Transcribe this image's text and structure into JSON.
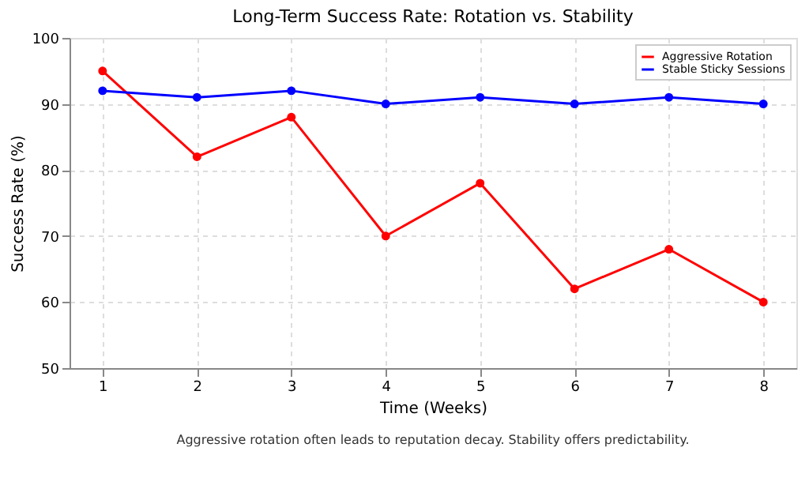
{
  "chart_data": {
    "type": "line",
    "title": "Long-Term Success Rate: Rotation vs. Stability",
    "xlabel": "Time (Weeks)",
    "ylabel": "Success Rate (%)",
    "x": [
      1,
      2,
      3,
      4,
      5,
      6,
      7,
      8
    ],
    "xlim": [
      0.65,
      8.35
    ],
    "xticks": [
      1,
      2,
      3,
      4,
      5,
      6,
      7,
      8
    ],
    "ylim": [
      50,
      100
    ],
    "yticks": [
      50,
      60,
      70,
      80,
      90,
      100
    ],
    "grid": true,
    "legend": "top right",
    "marker": "circle",
    "line_style": "solid",
    "annotations": [
      "Aggressive rotation often leads to reputation decay. Stability offers predictability."
    ],
    "series": [
      {
        "name": "Aggressive Rotation",
        "color": "#ff0000",
        "values": [
          95,
          82,
          88,
          70,
          78,
          62,
          68,
          60
        ]
      },
      {
        "name": "Stable Sticky Sessions",
        "color": "#0000ff",
        "values": [
          92,
          91,
          92,
          90,
          91,
          90,
          91,
          90
        ]
      }
    ]
  }
}
